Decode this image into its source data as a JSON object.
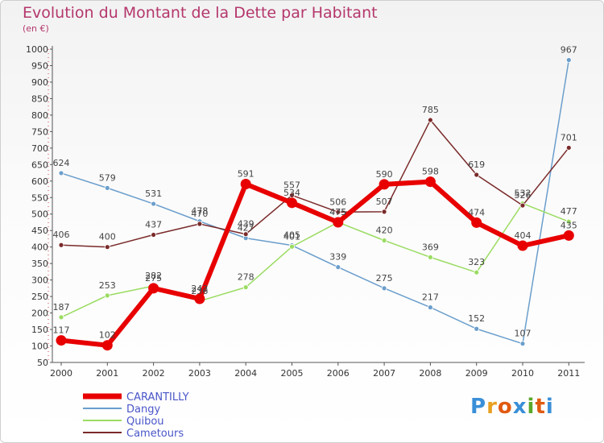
{
  "title": "Evolution du Montant de la Dette par Habitant",
  "subtitle": "(en €)",
  "logo": "Proxiti",
  "chart_data": {
    "type": "line",
    "title": "Evolution du Montant de la Dette par Habitant",
    "subtitle": "(en €)",
    "x": [
      "2000",
      "2001",
      "2002",
      "2003",
      "2004",
      "2005",
      "2006",
      "2007",
      "2008",
      "2009",
      "2010",
      "2011"
    ],
    "ylim": [
      50,
      1000
    ],
    "yticks": [
      50,
      100,
      150,
      200,
      250,
      300,
      350,
      400,
      450,
      500,
      550,
      600,
      650,
      700,
      750,
      800,
      850,
      900,
      950,
      1000
    ],
    "grid": false,
    "legend_position": "bottom-left",
    "series": [
      {
        "name": "CARANTILLY",
        "color": "#e80000",
        "width": 6,
        "values": [
          117,
          102,
          275,
          243,
          591,
          534,
          475,
          590,
          598,
          474,
          404,
          435
        ]
      },
      {
        "name": "Dangy",
        "color": "#6b9ecc",
        "width": 1.5,
        "values": [
          624,
          579,
          531,
          478,
          427,
          405,
          339,
          275,
          217,
          152,
          107,
          967
        ]
      },
      {
        "name": "Quibou",
        "color": "#9bdc62",
        "width": 1.5,
        "values": [
          187,
          253,
          282,
          236,
          278,
          401,
          475,
          420,
          369,
          323,
          532,
          477
        ]
      },
      {
        "name": "Cametours",
        "color": "#7a2a2a",
        "width": 1.5,
        "values": [
          406,
          400,
          437,
          470,
          439,
          557,
          506,
          507,
          785,
          619,
          526,
          701
        ]
      }
    ]
  }
}
